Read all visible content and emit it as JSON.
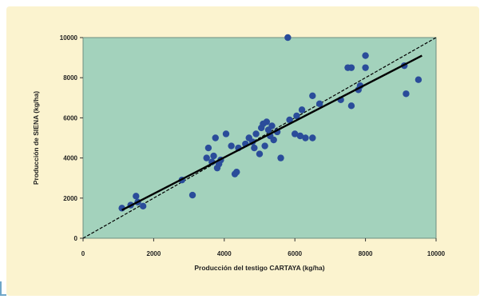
{
  "chart_data": {
    "type": "scatter",
    "title": "",
    "xlabel": "Producción del testigo CARTAYA (kg/ha)",
    "ylabel": "Producción de SIENA (kg/ha)",
    "xlim": [
      0,
      10000
    ],
    "ylim": [
      0,
      10000
    ],
    "x_ticks": [
      "0",
      "2000",
      "4000",
      "6000",
      "8000",
      "10000"
    ],
    "y_ticks": [
      "0",
      "2000",
      "4000",
      "6000",
      "8000",
      "10000"
    ],
    "grid": false,
    "legend": "none",
    "colors": {
      "plot_background": "#a3d2bc",
      "frame_background": "#fbf3cf",
      "points": "#2a4c9a",
      "regression_line": "#000000",
      "reference_line": "#000000"
    },
    "series": [
      {
        "values": [
          [
            1100,
            1500
          ],
          [
            1350,
            1650
          ],
          [
            1500,
            2100
          ],
          [
            1550,
            1800
          ],
          [
            1700,
            1600
          ],
          [
            2800,
            2900
          ],
          [
            3100,
            2150
          ],
          [
            3500,
            4000
          ],
          [
            3550,
            4500
          ],
          [
            3650,
            3800
          ],
          [
            3700,
            4100
          ],
          [
            3750,
            5000
          ],
          [
            3800,
            3500
          ],
          [
            3850,
            3700
          ],
          [
            3900,
            3900
          ],
          [
            4050,
            5200
          ],
          [
            4200,
            4600
          ],
          [
            4300,
            3200
          ],
          [
            4350,
            3300
          ],
          [
            4400,
            4500
          ],
          [
            4600,
            4700
          ],
          [
            4700,
            5000
          ],
          [
            4800,
            4800
          ],
          [
            4850,
            4500
          ],
          [
            4900,
            5200
          ],
          [
            5000,
            4200
          ],
          [
            5050,
            5500
          ],
          [
            5100,
            5700
          ],
          [
            5150,
            4600
          ],
          [
            5200,
            5800
          ],
          [
            5250,
            5400
          ],
          [
            5300,
            5100
          ],
          [
            5350,
            5600
          ],
          [
            5400,
            4900
          ],
          [
            5500,
            5300
          ],
          [
            5600,
            4000
          ],
          [
            5800,
            10000
          ],
          [
            5850,
            5900
          ],
          [
            6000,
            5200
          ],
          [
            6050,
            6100
          ],
          [
            6150,
            5100
          ],
          [
            6200,
            6400
          ],
          [
            6300,
            5000
          ],
          [
            6500,
            5000
          ],
          [
            6500,
            7100
          ],
          [
            6700,
            6700
          ],
          [
            7300,
            6900
          ],
          [
            7500,
            8500
          ],
          [
            7600,
            8500
          ],
          [
            7600,
            6600
          ],
          [
            7800,
            7400
          ],
          [
            7850,
            7600
          ],
          [
            8000,
            8500
          ],
          [
            8000,
            9100
          ],
          [
            9100,
            8600
          ],
          [
            9150,
            7200
          ],
          [
            9500,
            7900
          ]
        ]
      }
    ],
    "regression_line": [
      [
        1100,
        1400
      ],
      [
        9600,
        9100
      ]
    ],
    "reference_line": [
      [
        0,
        0
      ],
      [
        10000,
        10000
      ]
    ]
  }
}
